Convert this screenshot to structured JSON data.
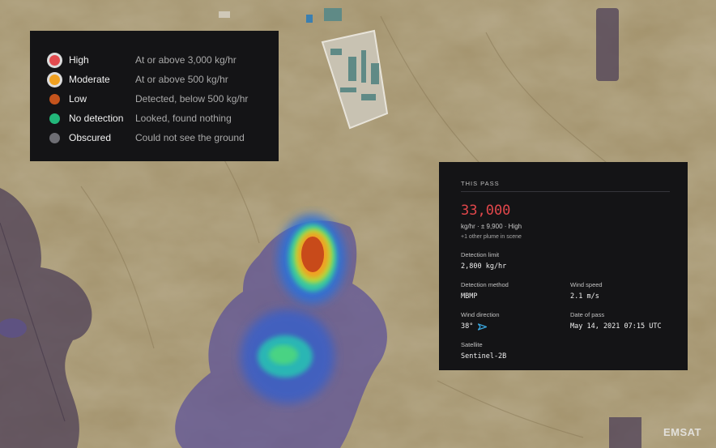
{
  "legend": {
    "items": [
      {
        "name": "High",
        "desc": "At or above 3,000 kg/hr",
        "color": "#e34b4f"
      },
      {
        "name": "Moderate",
        "desc": "At or above 500 kg/hr",
        "color": "#f0a020"
      },
      {
        "name": "Low",
        "desc": "Detected, below 500 kg/hr",
        "color": "#c4531c"
      },
      {
        "name": "No detection",
        "desc": "Looked, found nothing",
        "color": "#22b77a"
      },
      {
        "name": "Obscured",
        "desc": "Could not see the ground",
        "color": "#6e6e74"
      }
    ]
  },
  "pass": {
    "header": "THIS PASS",
    "rate": "33,000",
    "rate_detail": "kg/hr · ± 9,900 · High",
    "other_plumes": "+1 other plume in scene",
    "detection_limit_label": "Detection limit",
    "detection_limit": "2,800 kg/hr",
    "detection_method_label": "Detection method",
    "detection_method": "MBMP",
    "wind_speed_label": "Wind speed",
    "wind_speed": "2.1 m/s",
    "wind_direction_label": "Wind direction",
    "wind_direction": "38°",
    "date_label": "Date of pass",
    "date": "May 14, 2021 07:15 UTC",
    "satellite_label": "Satellite",
    "satellite": "Sentinel-2B"
  },
  "brand": "EMSAT",
  "colors": {
    "accent": "#e2474b",
    "wind_arrow": "#3aa8e0"
  }
}
